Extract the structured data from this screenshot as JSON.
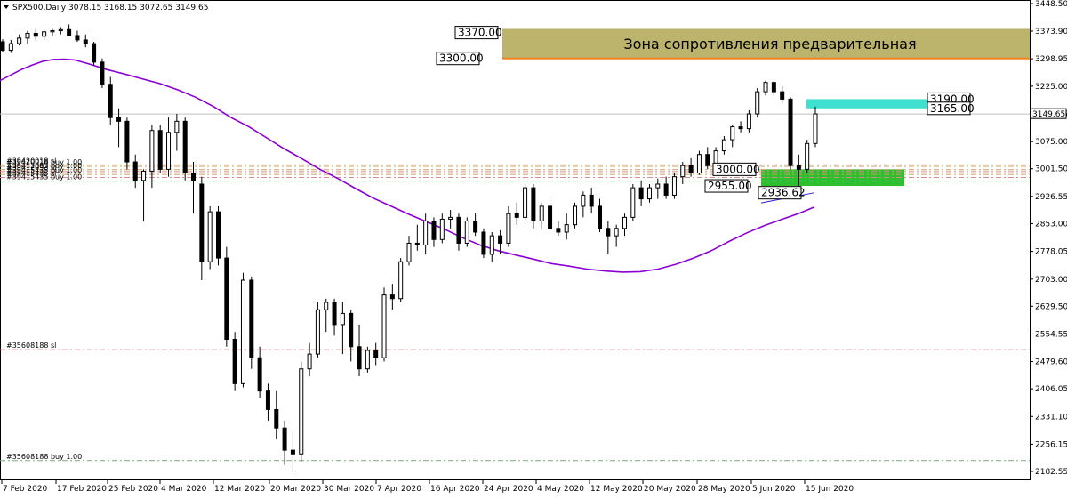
{
  "header": {
    "symbol_info": "SPX500,Daily  3078.15 3168.15 3072.65 3149.65"
  },
  "chart_data": {
    "type": "candlestick",
    "symbol": "SPX500",
    "timeframe": "Daily",
    "ohlc_header": {
      "open": 3078.15,
      "high": 3168.15,
      "low": 3072.65,
      "close": 3149.65
    },
    "current_price": 3149.65,
    "current_price_label": "3149.65",
    "ylim": [
      2150,
      3470
    ],
    "y_ticks": [
      "3448.50",
      "3373.90",
      "3298.95",
      "3225.00",
      "3150.05",
      "3075.00",
      "3001.50",
      "2926.55",
      "2853.00",
      "2778.05",
      "2703.00",
      "2629.50",
      "2554.55",
      "2479.60",
      "2406.05",
      "2331.10",
      "2256.15",
      "2182.55"
    ],
    "x_ticks": [
      "7 Feb 2020",
      "17 Feb 2020",
      "25 Feb 2020",
      "4 Mar 2020",
      "12 Mar 2020",
      "20 Mar 2020",
      "30 Mar 2020",
      "7 Apr 2020",
      "16 Apr 2020",
      "24 Apr 2020",
      "4 May 2020",
      "12 May 2020",
      "20 May 2020",
      "28 May 2020",
      "5 Jun 2020",
      "15 Jun 2020"
    ],
    "candles": [
      [
        3345,
        3352,
        3318,
        3322
      ],
      [
        3322,
        3350,
        3315,
        3340
      ],
      [
        3340,
        3365,
        3335,
        3355
      ],
      [
        3355,
        3375,
        3340,
        3368
      ],
      [
        3368,
        3380,
        3348,
        3360
      ],
      [
        3360,
        3378,
        3350,
        3372
      ],
      [
        3372,
        3380,
        3362,
        3375
      ],
      [
        3375,
        3385,
        3365,
        3378
      ],
      [
        3378,
        3392,
        3360,
        3362
      ],
      [
        3362,
        3375,
        3345,
        3350
      ],
      [
        3350,
        3365,
        3330,
        3340
      ],
      [
        3340,
        3345,
        3280,
        3290
      ],
      [
        3290,
        3300,
        3220,
        3230
      ],
      [
        3230,
        3250,
        3120,
        3140
      ],
      [
        3140,
        3165,
        3060,
        3130
      ],
      [
        3130,
        3140,
        3000,
        3020
      ],
      [
        3020,
        3040,
        2950,
        2970
      ],
      [
        2970,
        3000,
        2860,
        2995
      ],
      [
        2995,
        3120,
        2950,
        3105
      ],
      [
        3105,
        3120,
        2990,
        3000
      ],
      [
        3000,
        3140,
        2980,
        3100
      ],
      [
        3100,
        3150,
        3050,
        3130
      ],
      [
        3130,
        3140,
        2970,
        2990
      ],
      [
        2990,
        3020,
        2880,
        2970
      ],
      [
        2960,
        2980,
        2700,
        2750
      ],
      [
        2750,
        2900,
        2730,
        2885
      ],
      [
        2885,
        2900,
        2740,
        2760
      ],
      [
        2760,
        2790,
        2520,
        2540
      ],
      [
        2540,
        2560,
        2400,
        2420
      ],
      [
        2420,
        2720,
        2410,
        2700
      ],
      [
        2700,
        2710,
        2460,
        2490
      ],
      [
        2490,
        2520,
        2380,
        2400
      ],
      [
        2400,
        2420,
        2320,
        2350
      ],
      [
        2350,
        2400,
        2270,
        2300
      ],
      [
        2300,
        2320,
        2200,
        2240
      ],
      [
        2240,
        2290,
        2180,
        2230
      ],
      [
        2230,
        2480,
        2210,
        2460
      ],
      [
        2460,
        2530,
        2440,
        2500
      ],
      [
        2500,
        2640,
        2490,
        2620
      ],
      [
        2620,
        2650,
        2560,
        2640
      ],
      [
        2640,
        2650,
        2550,
        2580
      ],
      [
        2580,
        2640,
        2500,
        2610
      ],
      [
        2610,
        2620,
        2480,
        2520
      ],
      [
        2520,
        2580,
        2440,
        2460
      ],
      [
        2460,
        2520,
        2450,
        2510
      ],
      [
        2510,
        2530,
        2470,
        2490
      ],
      [
        2490,
        2680,
        2480,
        2660
      ],
      [
        2660,
        2690,
        2620,
        2650
      ],
      [
        2650,
        2760,
        2640,
        2750
      ],
      [
        2750,
        2820,
        2740,
        2800
      ],
      [
        2800,
        2850,
        2780,
        2795
      ],
      [
        2795,
        2880,
        2770,
        2860
      ],
      [
        2860,
        2870,
        2790,
        2810
      ],
      [
        2810,
        2880,
        2800,
        2865
      ],
      [
        2865,
        2890,
        2840,
        2870
      ],
      [
        2870,
        2880,
        2780,
        2800
      ],
      [
        2800,
        2870,
        2790,
        2860
      ],
      [
        2860,
        2880,
        2820,
        2830
      ],
      [
        2830,
        2840,
        2760,
        2770
      ],
      [
        2770,
        2830,
        2750,
        2820
      ],
      [
        2820,
        2835,
        2770,
        2800
      ],
      [
        2800,
        2900,
        2790,
        2880
      ],
      [
        2880,
        2910,
        2850,
        2870
      ],
      [
        2870,
        2960,
        2860,
        2950
      ],
      [
        2950,
        2960,
        2840,
        2860
      ],
      [
        2860,
        2910,
        2840,
        2900
      ],
      [
        2900,
        2920,
        2830,
        2840
      ],
      [
        2840,
        2860,
        2820,
        2830
      ],
      [
        2830,
        2880,
        2810,
        2850
      ],
      [
        2850,
        2910,
        2840,
        2900
      ],
      [
        2900,
        2940,
        2870,
        2930
      ],
      [
        2930,
        2950,
        2880,
        2900
      ],
      [
        2900,
        2920,
        2830,
        2840
      ],
      [
        2840,
        2860,
        2770,
        2820
      ],
      [
        2820,
        2850,
        2790,
        2840
      ],
      [
        2840,
        2880,
        2820,
        2870
      ],
      [
        2870,
        2960,
        2860,
        2950
      ],
      [
        2950,
        2970,
        2900,
        2920
      ],
      [
        2920,
        2960,
        2910,
        2950
      ],
      [
        2950,
        2975,
        2920,
        2960
      ],
      [
        2960,
        2980,
        2920,
        2930
      ],
      [
        2930,
        2990,
        2920,
        2980
      ],
      [
        2980,
        3020,
        2960,
        3010
      ],
      [
        3010,
        3030,
        2980,
        2990
      ],
      [
        2990,
        3050,
        2985,
        3040
      ],
      [
        3040,
        3060,
        3000,
        3010
      ],
      [
        3010,
        3060,
        3000,
        3050
      ],
      [
        3050,
        3090,
        3040,
        3080
      ],
      [
        3080,
        3120,
        3060,
        3115
      ],
      [
        3115,
        3130,
        3100,
        3110
      ],
      [
        3110,
        3160,
        3100,
        3150
      ],
      [
        3150,
        3220,
        3140,
        3210
      ],
      [
        3210,
        3240,
        3200,
        3235
      ],
      [
        3235,
        3240,
        3200,
        3210
      ],
      [
        3210,
        3225,
        3180,
        3190
      ],
      [
        3190,
        3195,
        3000,
        3010
      ],
      [
        3010,
        3040,
        2940,
        3000
      ],
      [
        3000,
        3080,
        2990,
        3070
      ],
      [
        3070,
        3170,
        3060,
        3150
      ]
    ],
    "moving_average": [
      [
        0,
        3240
      ],
      [
        12,
        3255
      ],
      [
        24,
        3270
      ],
      [
        36,
        3282
      ],
      [
        48,
        3292
      ],
      [
        60,
        3297
      ],
      [
        72,
        3298
      ],
      [
        84,
        3296
      ],
      [
        100,
        3285
      ],
      [
        120,
        3270
      ],
      [
        140,
        3258
      ],
      [
        160,
        3245
      ],
      [
        180,
        3232
      ],
      [
        200,
        3215
      ],
      [
        220,
        3195
      ],
      [
        240,
        3170
      ],
      [
        260,
        3140
      ],
      [
        280,
        3115
      ],
      [
        300,
        3085
      ],
      [
        320,
        3055
      ],
      [
        340,
        3028
      ],
      [
        360,
        3000
      ],
      [
        380,
        2975
      ],
      [
        400,
        2948
      ],
      [
        420,
        2922
      ],
      [
        440,
        2900
      ],
      [
        460,
        2878
      ],
      [
        480,
        2858
      ],
      [
        500,
        2838
      ],
      [
        520,
        2815
      ],
      [
        540,
        2795
      ],
      [
        560,
        2780
      ],
      [
        580,
        2768
      ],
      [
        600,
        2757
      ],
      [
        620,
        2745
      ],
      [
        640,
        2738
      ],
      [
        660,
        2730
      ],
      [
        680,
        2725
      ],
      [
        700,
        2722
      ],
      [
        720,
        2723
      ],
      [
        740,
        2730
      ],
      [
        760,
        2743
      ],
      [
        780,
        2760
      ],
      [
        800,
        2780
      ],
      [
        820,
        2805
      ],
      [
        840,
        2828
      ],
      [
        860,
        2848
      ],
      [
        880,
        2865
      ],
      [
        900,
        2882
      ],
      [
        916,
        2898
      ]
    ],
    "trendline": [
      [
        856,
        2909
      ],
      [
        916,
        2936.62
      ]
    ]
  },
  "zones": {
    "resistance": {
      "label": "Зона сопротивления предварительная",
      "top": 3380,
      "bottom": 3300,
      "color": "#bcb36c",
      "line_color": "#f5821f"
    },
    "cyan": {
      "top": 3190,
      "bottom": 3165,
      "color": "#40e0d0"
    },
    "green": {
      "top": 3000,
      "bottom": 2955,
      "color": "#2dbf2d"
    }
  },
  "level_labels": [
    {
      "text": "3370.00",
      "value": 3370
    },
    {
      "text": "3300.00",
      "value": 3300
    },
    {
      "text": "3190.00",
      "value": 3190
    },
    {
      "text": "3165.00",
      "value": 3165
    },
    {
      "text": "3000.00",
      "value": 3000
    },
    {
      "text": "2955.00",
      "value": 2955
    },
    {
      "text": "2936.62",
      "value": 2936.62
    }
  ],
  "order_lines": [
    {
      "text": "#39420018 sl",
      "value": 3012,
      "color": "#d98c8c"
    },
    {
      "text": "#39420018 buy 1.00",
      "value": 3008,
      "color": "#c8a060"
    },
    {
      "text": "#39412093 buy 1.00",
      "value": 2999,
      "color": "#c8a060"
    },
    {
      "text": "#39412093 sl",
      "value": 2994,
      "color": "#d98c8c"
    },
    {
      "text": "#39415435 buy 1.00",
      "value": 2986,
      "color": "#c8a060"
    },
    {
      "text": "#39415435 sl",
      "value": 2978,
      "color": "#d98c8c"
    },
    {
      "text": "#39415435 buy 1.00",
      "value": 2968,
      "color": "#7cab7c"
    },
    {
      "text": "#35608188 sl",
      "value": 2512,
      "color": "#d98c8c"
    },
    {
      "text": "#35608188 buy 1.00",
      "value": 2212,
      "color": "#7cab7c"
    }
  ]
}
